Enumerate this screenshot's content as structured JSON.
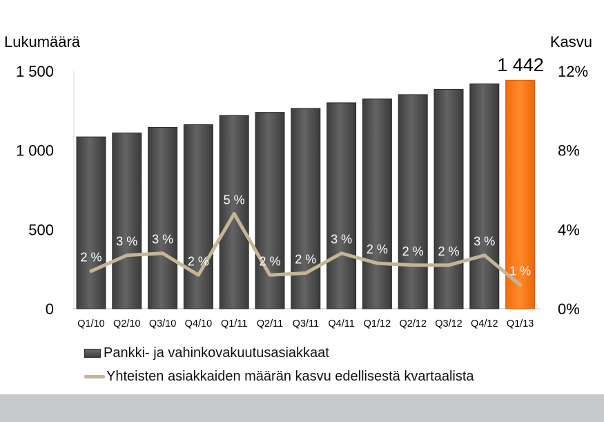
{
  "chart_data": {
    "type": "bar+line",
    "y_left_label": "Lukumäärä",
    "y_right_label": "Kasvu",
    "y_left_ticks": [
      "1 500",
      "1 000",
      "500",
      "0"
    ],
    "y_left_tick_values": [
      1500,
      1000,
      500,
      0
    ],
    "y_right_ticks": [
      "12%",
      "8%",
      "4%",
      "0%"
    ],
    "y_right_tick_values": [
      12,
      8,
      4,
      0
    ],
    "ylim_left": [
      0,
      1500
    ],
    "ylim_right": [
      0,
      12
    ],
    "categories": [
      "Q1/10",
      "Q2/10",
      "Q3/10",
      "Q4/10",
      "Q1/11",
      "Q2/11",
      "Q3/11",
      "Q4/11",
      "Q1/12",
      "Q2/12",
      "Q3/12",
      "Q4/12",
      "Q1/13"
    ],
    "series": [
      {
        "name": "Pankki- ja vahinkovakuutusasiakkaat",
        "type": "bar",
        "axis": "left",
        "values": [
          1085,
          1110,
          1145,
          1162,
          1220,
          1240,
          1265,
          1300,
          1325,
          1352,
          1385,
          1420,
          1442
        ]
      },
      {
        "name": "Yhteisten asiakkaiden määrän kasvu edellisestä kvartaalista",
        "type": "line",
        "axis": "right",
        "values": [
          1.9,
          2.7,
          2.8,
          1.7,
          4.8,
          1.7,
          1.8,
          2.8,
          2.3,
          2.2,
          2.2,
          2.7,
          1.2
        ],
        "labels": [
          "2 %",
          "3 %",
          "3 %",
          "2 %",
          "5 %",
          "2 %",
          "2 %",
          "3 %",
          "2 %",
          "2 %",
          "2 %",
          "3 %",
          "1 %"
        ]
      }
    ],
    "highlight": {
      "category": "Q1/13",
      "label": "1 442"
    },
    "grid": false,
    "legend_position": "bottom"
  },
  "colors": {
    "bar": "#4f4f4f",
    "bar_highlight": "#f47a1f",
    "line": "#c4b596",
    "band": "#c8c9cc"
  }
}
